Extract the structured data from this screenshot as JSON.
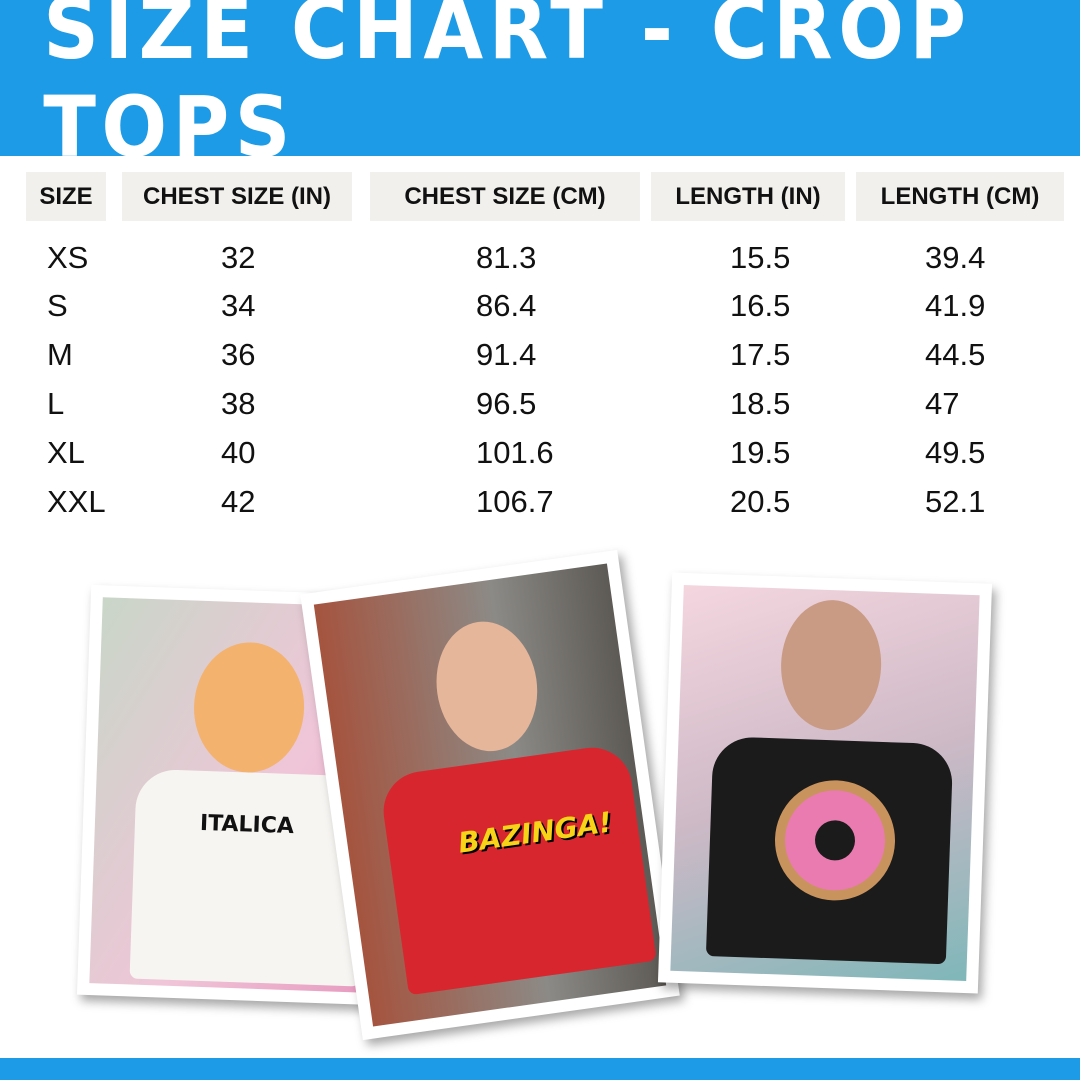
{
  "title": "SIZE CHART - CROP TOPS",
  "colors": {
    "accent": "#1d9be6",
    "header_cell": "#f1f0ec"
  },
  "table": {
    "headers": [
      "SIZE",
      "CHEST SIZE (IN)",
      "CHEST SIZE (CM)",
      "LENGTH (IN)",
      "LENGTH (CM)"
    ],
    "rows": [
      [
        "XS",
        "32",
        "81.3",
        "15.5",
        "39.4"
      ],
      [
        "S",
        "34",
        "86.4",
        "16.5",
        "41.9"
      ],
      [
        "M",
        "36",
        "91.4",
        "17.5",
        "44.5"
      ],
      [
        "L",
        "38",
        "96.5",
        "18.5",
        "47"
      ],
      [
        "XL",
        "40",
        "101.6",
        "19.5",
        "49.5"
      ],
      [
        "XXL",
        "42",
        "106.7",
        "20.5",
        "52.1"
      ]
    ]
  },
  "photos": [
    {
      "shirt_print": "ITALICA",
      "shirt_color": "#f7f5f2"
    },
    {
      "shirt_print": "BAZINGA!",
      "shirt_color": "#d8262f"
    },
    {
      "shirt_print": "donut",
      "shirt_color": "#1b1b1b"
    }
  ]
}
